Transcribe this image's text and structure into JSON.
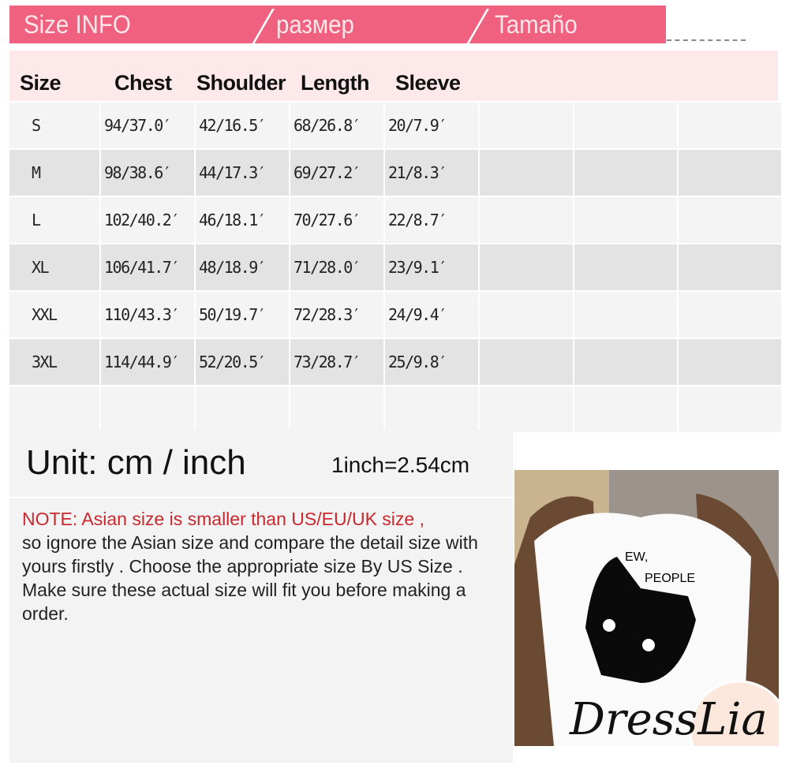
{
  "banner": {
    "labels": [
      "Size INFO",
      "размер",
      "Tamaño"
    ],
    "color": "#f0607f"
  },
  "table": {
    "headers": [
      "Size",
      "Chest",
      "Shoulder",
      "Length",
      "Sleeve"
    ],
    "rows": [
      [
        "S",
        "94/37.0′",
        "42/16.5′",
        "68/26.8′",
        "20/7.9′"
      ],
      [
        "M",
        "98/38.6′",
        "44/17.3′",
        "69/27.2′",
        "21/8.3′"
      ],
      [
        "L",
        "102/40.2′",
        "46/18.1′",
        "70/27.6′",
        "22/8.7′"
      ],
      [
        "XL",
        "106/41.7′",
        "48/18.9′",
        "71/28.0′",
        "23/9.1′"
      ],
      [
        "XXL",
        "110/43.3′",
        "50/19.7′",
        "72/28.3′",
        "24/9.4′"
      ],
      [
        "3XL",
        "114/44.9′",
        "52/20.5′",
        "73/28.7′",
        "25/9.8′"
      ],
      [
        "",
        "",
        "",
        "",
        ""
      ]
    ]
  },
  "unit": {
    "label": "Unit: cm / inch",
    "conversion": "1inch=2.54cm"
  },
  "note": {
    "warning": "NOTE: Asian size is smaller than US/EU/UK size ,",
    "body": " so ignore the Asian size and compare the detail size with yours firstly . Choose the appropriate size By US Size . Make sure these actual size will fit you before making a order."
  },
  "photo": {
    "shirt_text_1": "EW,",
    "shirt_text_2": "PEOPLE"
  },
  "logo": {
    "text": "DressLia"
  }
}
